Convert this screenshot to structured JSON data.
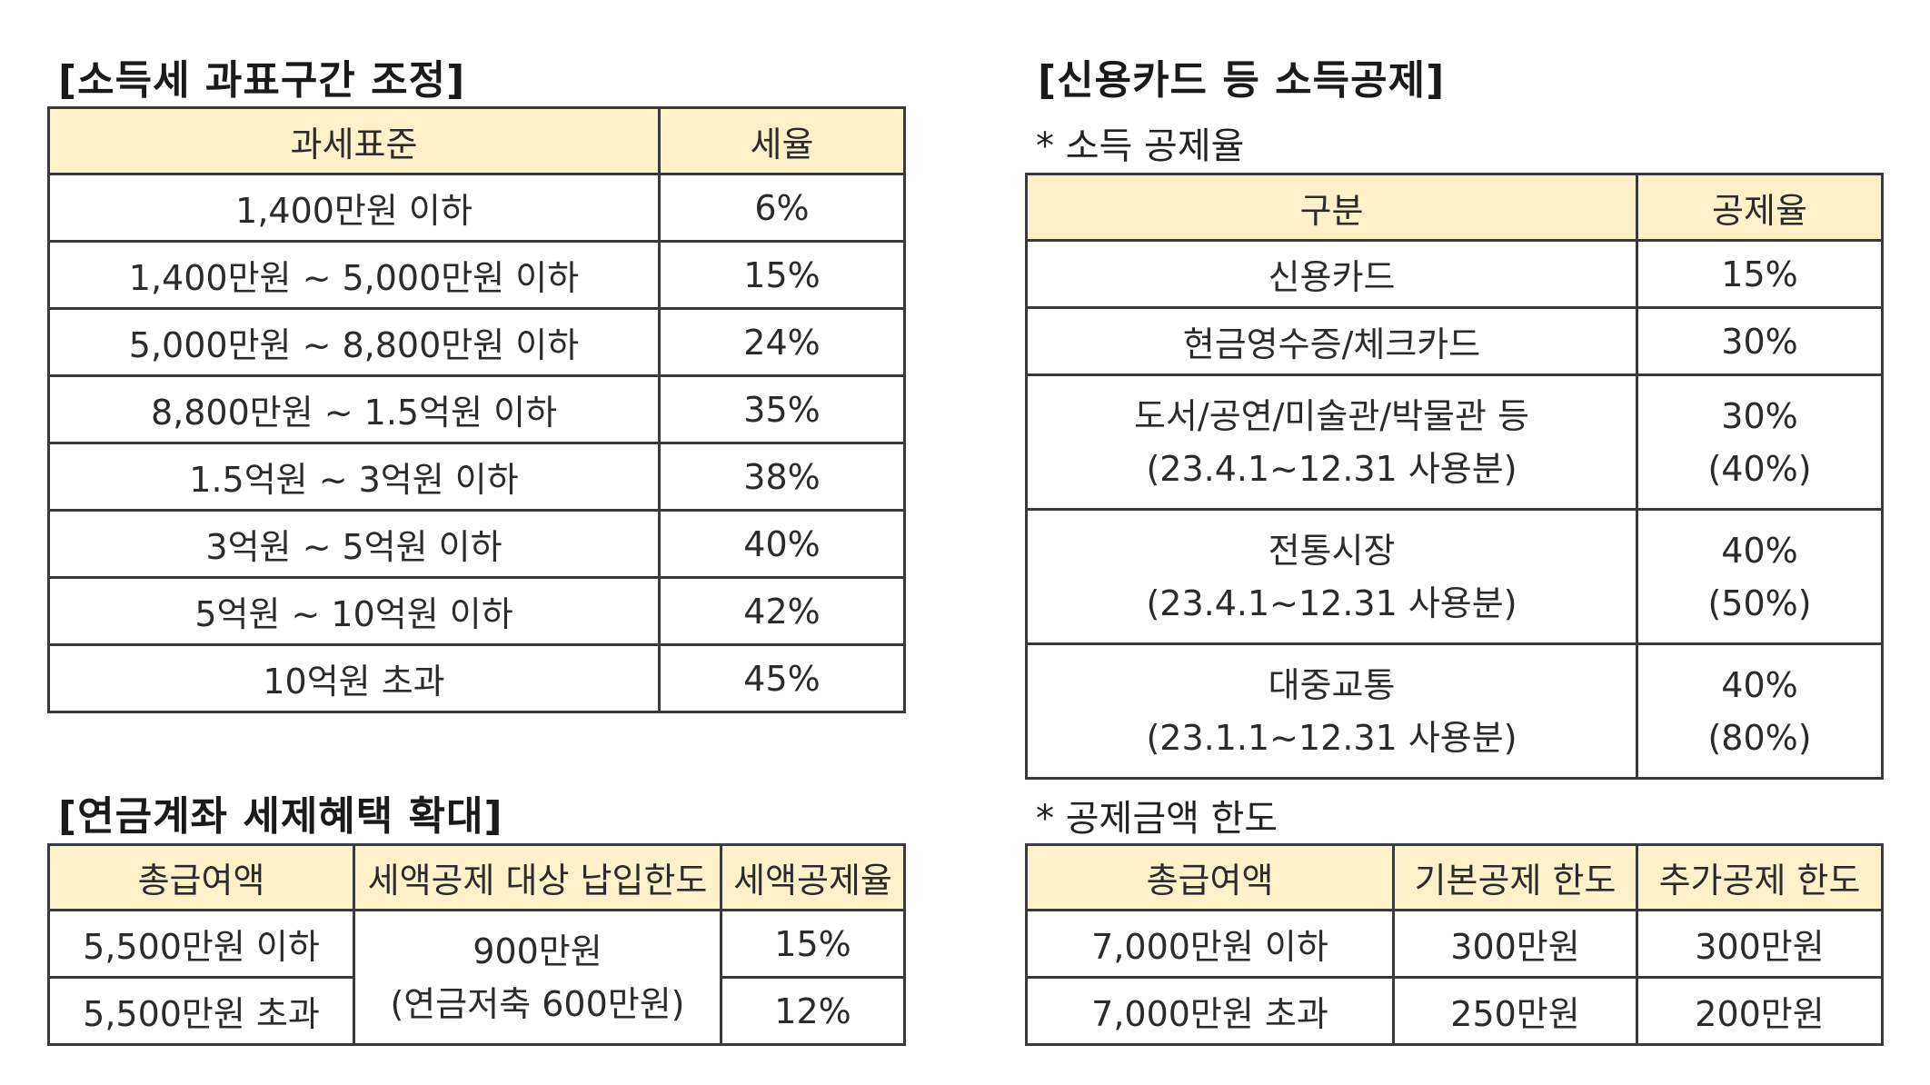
{
  "income_tax": {
    "title": "[소득세 과표구간 조정]",
    "headers": [
      "과세표준",
      "세율"
    ],
    "rows": [
      [
        "1,400만원 이하",
        "6%"
      ],
      [
        "1,400만원 ~ 5,000만원 이하",
        "15%"
      ],
      [
        "5,000만원 ~ 8,800만원 이하",
        "24%"
      ],
      [
        "8,800만원 ~ 1.5억원 이하",
        "35%"
      ],
      [
        "1.5억원 ~ 3억원 이하",
        "38%"
      ],
      [
        "3억원 ~ 5억원 이하",
        "40%"
      ],
      [
        "5억원 ~ 10억원 이하",
        "42%"
      ],
      [
        "10억원 초과",
        "45%"
      ]
    ]
  },
  "pension": {
    "title": "[연금계좌 세제혜택 확대]",
    "headers": [
      "총급여액",
      "세액공제 대상 납입한도",
      "세액공제율"
    ],
    "row1_salary": "5,500만원 이하",
    "row2_salary": "5,500만원 초과",
    "limit_line1": "900만원",
    "limit_line2": "(연금저축 600만원)",
    "row1_rate": "15%",
    "row2_rate": "12%"
  },
  "credit_card": {
    "title": "[신용카드 등 소득공제]",
    "rate_subtitle": "* 소득 공제율",
    "rate_headers": [
      "구분",
      "공제율"
    ],
    "rate_rows": [
      {
        "category": "신용카드",
        "category_note": "",
        "rate": "15%",
        "rate_note": ""
      },
      {
        "category": "현금영수증/체크카드",
        "category_note": "",
        "rate": "30%",
        "rate_note": ""
      },
      {
        "category": "도서/공연/미술관/박물관 등",
        "category_note": "(23.4.1~12.31 사용분)",
        "rate": "30%",
        "rate_note": "(40%)"
      },
      {
        "category": "전통시장",
        "category_note": "(23.4.1~12.31 사용분)",
        "rate": "40%",
        "rate_note": "(50%)"
      },
      {
        "category": "대중교통",
        "category_note": "(23.1.1~12.31 사용분)",
        "rate": "40%",
        "rate_note": "(80%)"
      }
    ],
    "limit_subtitle": "* 공제금액 한도",
    "limit_headers": [
      "총급여액",
      "기본공제 한도",
      "추가공제 한도"
    ],
    "limit_rows": [
      [
        "7,000만원 이하",
        "300만원",
        "300만원"
      ],
      [
        "7,000만원 초과",
        "250만원",
        "200만원"
      ]
    ]
  }
}
